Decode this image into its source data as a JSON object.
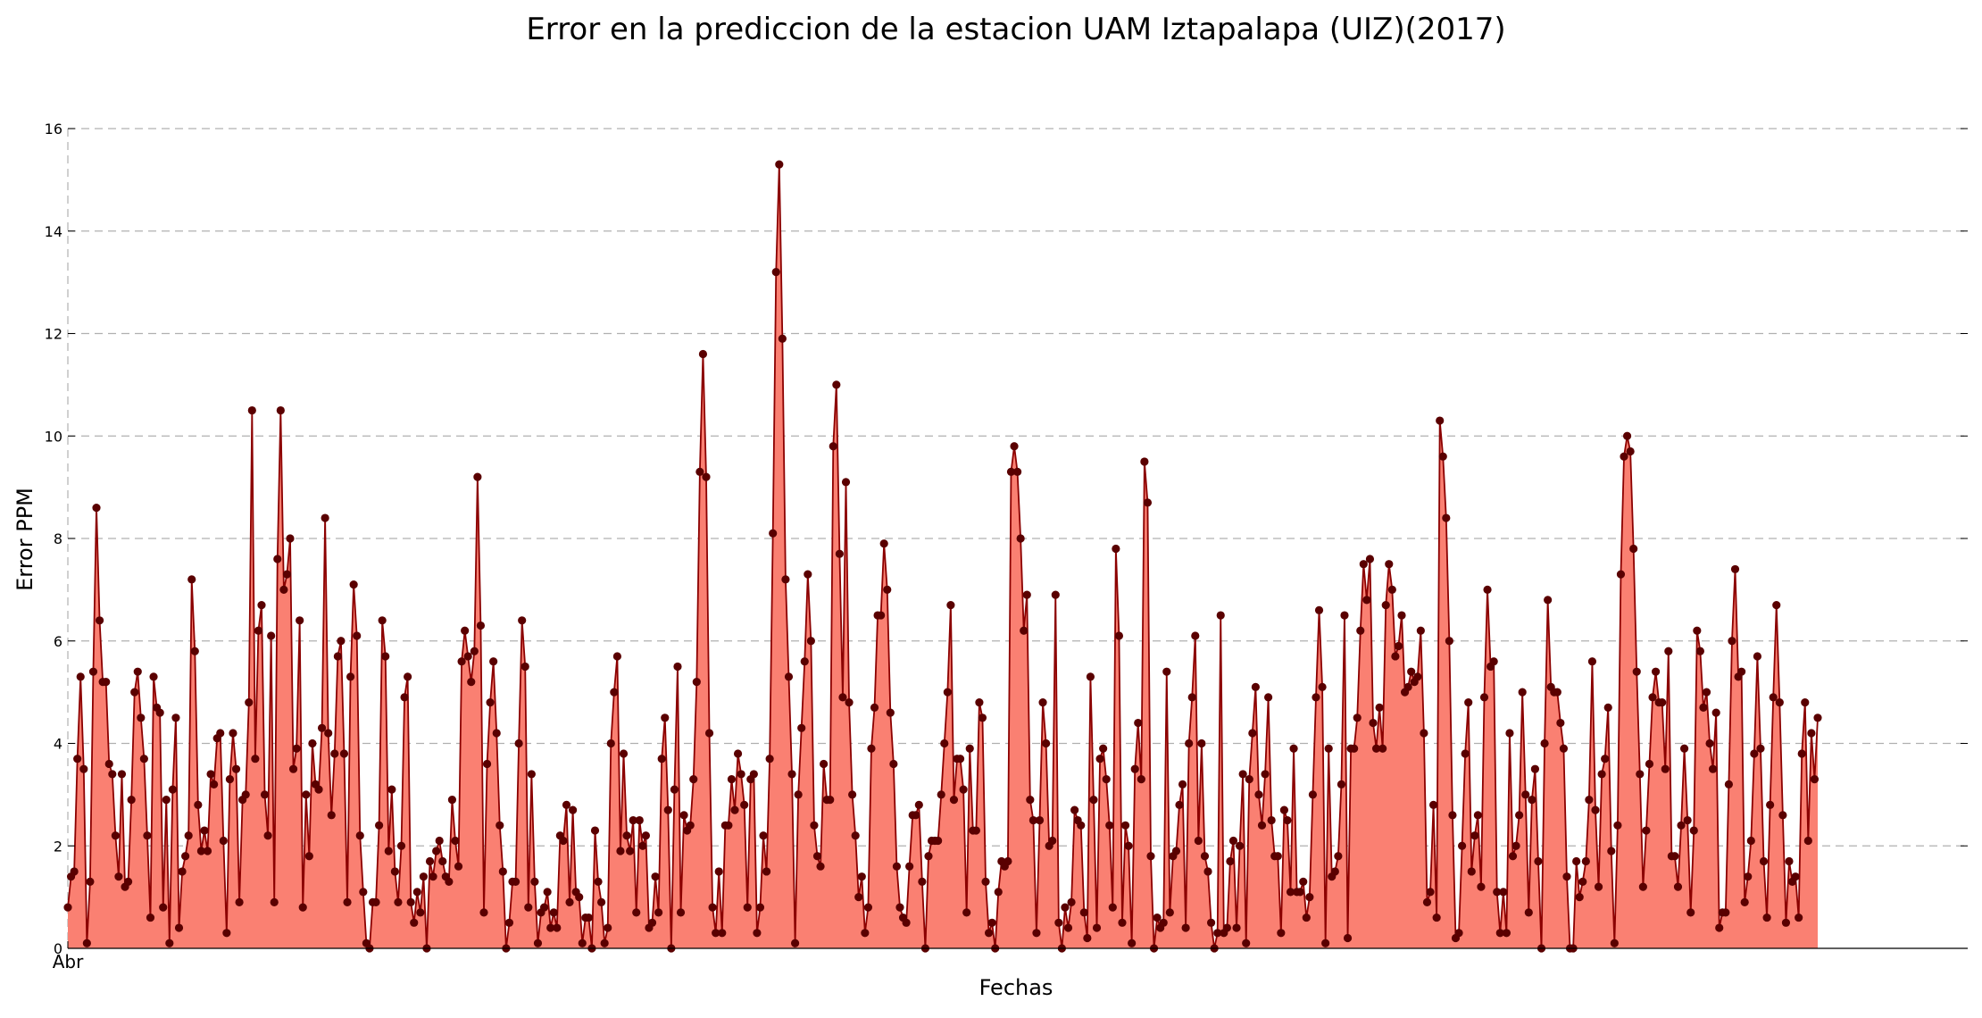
{
  "chart_data": {
    "type": "area",
    "title": "Error en la prediccion de la estacion UAM Iztapalapa (UIZ)(2017)",
    "xlabel": "Fechas",
    "ylabel": "Error PPM",
    "xtick_labels": [
      "Abr"
    ],
    "yticks": [
      0,
      2,
      4,
      6,
      8,
      10,
      12,
      14,
      16
    ],
    "ylim": [
      0,
      16
    ],
    "grid": true,
    "legend": "none",
    "colors": {
      "fill": "#fa8072",
      "line": "#8b0000",
      "marker": "#5a0000",
      "grid": "#b0b0b0"
    },
    "series": [
      {
        "values": [
          0.8,
          1.4,
          1.5,
          3.7,
          5.3,
          3.5,
          0.1,
          1.3,
          5.4,
          8.6,
          6.4,
          5.2,
          5.2,
          3.6,
          3.4,
          2.2,
          1.4,
          3.4,
          1.2,
          1.3,
          2.9,
          5.0,
          5.4,
          4.5,
          3.7,
          2.2,
          0.6,
          5.3,
          4.7,
          4.6,
          0.8,
          2.9,
          0.1,
          3.1,
          4.5,
          0.4,
          1.5,
          1.8,
          2.2,
          7.2,
          5.8,
          2.8,
          1.9,
          2.3,
          1.9,
          3.4,
          3.2,
          4.1,
          4.2,
          2.1,
          0.3,
          3.3,
          4.2,
          3.5,
          0.9,
          2.9,
          3.0,
          4.8,
          10.5,
          3.7,
          6.2,
          6.7,
          3.0,
          2.2,
          6.1,
          0.9,
          7.6,
          10.5,
          7.0,
          7.3,
          8.0,
          3.5,
          3.9,
          6.4,
          0.8,
          3.0,
          1.8,
          4.0,
          3.2,
          3.1,
          4.3,
          8.4,
          4.2,
          2.6,
          3.8,
          5.7,
          6.0,
          3.8,
          0.9,
          5.3,
          7.1,
          6.1,
          2.2,
          1.1,
          0.1,
          0.0,
          0.9,
          0.9,
          2.4,
          6.4,
          5.7,
          1.9,
          3.1,
          1.5,
          0.9,
          2.0,
          4.9,
          5.3,
          0.9,
          0.5,
          1.1,
          0.7,
          1.4,
          0.0,
          1.7,
          1.4,
          1.9,
          2.1,
          1.7,
          1.4,
          1.3,
          2.9,
          2.1,
          1.6,
          5.6,
          6.2,
          5.7,
          5.2,
          5.8,
          9.2,
          6.3,
          0.7,
          3.6,
          4.8,
          5.6,
          4.2,
          2.4,
          1.5,
          0.0,
          0.5,
          1.3,
          1.3,
          4.0,
          6.4,
          5.5,
          0.8,
          3.4,
          1.3,
          0.1,
          0.7,
          0.8,
          1.1,
          0.4,
          0.7,
          0.4,
          2.2,
          2.1,
          2.8,
          0.9,
          2.7,
          1.1,
          1.0,
          0.1,
          0.6,
          0.6,
          0.0,
          2.3,
          1.3,
          0.9,
          0.1,
          0.4,
          4.0,
          5.0,
          5.7,
          1.9,
          3.8,
          2.2,
          1.9,
          2.5,
          0.7,
          2.5,
          2.0,
          2.2,
          0.4,
          0.5,
          1.4,
          0.7,
          3.7,
          4.5,
          2.7,
          0.0,
          3.1,
          5.5,
          0.7,
          2.6,
          2.3,
          2.4,
          3.3,
          5.2,
          9.3,
          11.6,
          9.2,
          4.2,
          0.8,
          0.3,
          1.5,
          0.3,
          2.4,
          2.4,
          3.3,
          2.7,
          3.8,
          3.4,
          2.8,
          0.8,
          3.3,
          3.4,
          0.3,
          0.8,
          2.2,
          1.5,
          3.7,
          8.1,
          13.2,
          15.3,
          11.9,
          7.2,
          5.3,
          3.4,
          0.1,
          3.0,
          4.3,
          5.6,
          7.3,
          6.0,
          2.4,
          1.8,
          1.6,
          3.6,
          2.9,
          2.9,
          9.8,
          11.0,
          7.7,
          4.9,
          9.1,
          4.8,
          3.0,
          2.2,
          1.0,
          1.4,
          0.3,
          0.8,
          3.9,
          4.7,
          6.5,
          6.5,
          7.9,
          7.0,
          4.6,
          3.6,
          1.6,
          0.8,
          0.6,
          0.5,
          1.6,
          2.6,
          2.6,
          2.8,
          1.3,
          0.0,
          1.8,
          2.1,
          2.1,
          2.1,
          3.0,
          4.0,
          5.0,
          6.7,
          2.9,
          3.7,
          3.7,
          3.1,
          0.7,
          3.9,
          2.3,
          2.3,
          4.8,
          4.5,
          1.3,
          0.3,
          0.5,
          0.0,
          1.1,
          1.7,
          1.6,
          1.7,
          9.3,
          9.8,
          9.3,
          8.0,
          6.2,
          6.9,
          2.9,
          2.5,
          0.3,
          2.5,
          4.8,
          4.0,
          2.0,
          2.1,
          6.9,
          0.5,
          0.0,
          0.8,
          0.4,
          0.9,
          2.7,
          2.5,
          2.4,
          0.7,
          0.2,
          5.3,
          2.9,
          0.4,
          3.7,
          3.9,
          3.3,
          2.4,
          0.8,
          7.8,
          6.1,
          0.5,
          2.4,
          2.0,
          0.1,
          3.5,
          4.4,
          3.3,
          9.5,
          8.7,
          1.8,
          0.0,
          0.6,
          0.4,
          0.5,
          5.4,
          0.7,
          1.8,
          1.9,
          2.8,
          3.2,
          0.4,
          4.0,
          4.9,
          6.1,
          2.1,
          4.0,
          1.8,
          1.5,
          0.5,
          0.0,
          0.3,
          6.5,
          0.3,
          0.4,
          1.7,
          2.1,
          0.4,
          2.0,
          3.4,
          0.1,
          3.3,
          4.2,
          5.1,
          3.0,
          2.4,
          3.4,
          4.9,
          2.5,
          1.8,
          1.8,
          0.3,
          2.7,
          2.5,
          1.1,
          3.9,
          1.1,
          1.1,
          1.3,
          0.6,
          1.0,
          3.0,
          4.9,
          6.6,
          5.1,
          0.1,
          3.9,
          1.4,
          1.5,
          1.8,
          3.2,
          6.5,
          0.2,
          3.9,
          3.9,
          4.5,
          6.2,
          7.5,
          6.8,
          7.6,
          4.4,
          3.9,
          4.7,
          3.9,
          6.7,
          7.5,
          7.0,
          5.7,
          5.9,
          6.5,
          5.0,
          5.1,
          5.4,
          5.2,
          5.3,
          6.2,
          4.2,
          0.9,
          1.1,
          2.8,
          0.6,
          10.3,
          9.6,
          8.4,
          6.0,
          2.6,
          0.2,
          0.3,
          2.0,
          3.8,
          4.8,
          1.5,
          2.2,
          2.6,
          1.2,
          4.9,
          7.0,
          5.5,
          5.6,
          1.1,
          0.3,
          1.1,
          0.3,
          4.2,
          1.8,
          2.0,
          2.6,
          5.0,
          3.0,
          0.7,
          2.9,
          3.5,
          1.7,
          0.0,
          4.0,
          6.8,
          5.1,
          5.0,
          5.0,
          4.4,
          3.9,
          1.4,
          0.0,
          0.0,
          1.7,
          1.0,
          1.3,
          1.7,
          2.9,
          5.6,
          2.7,
          1.2,
          3.4,
          3.7,
          4.7,
          1.9,
          0.1,
          2.4,
          7.3,
          9.6,
          10.0,
          9.7,
          7.8,
          5.4,
          3.4,
          1.2,
          2.3,
          3.6,
          4.9,
          5.4,
          4.8,
          4.8,
          3.5,
          5.8,
          1.8,
          1.8,
          1.2,
          2.4,
          3.9,
          2.5,
          0.7,
          2.3,
          6.2,
          5.8,
          4.7,
          5.0,
          4.0,
          3.5,
          4.6,
          0.4,
          0.7,
          0.7,
          3.2,
          6.0,
          7.4,
          5.3,
          5.4,
          0.9,
          1.4,
          2.1,
          3.8,
          5.7,
          3.9,
          1.7,
          0.6,
          2.8,
          4.9,
          6.7,
          4.8,
          2.6,
          0.5,
          1.7,
          1.3,
          1.4,
          0.6,
          3.8,
          4.8,
          2.1,
          4.2,
          3.3,
          4.5
        ]
      }
    ]
  }
}
